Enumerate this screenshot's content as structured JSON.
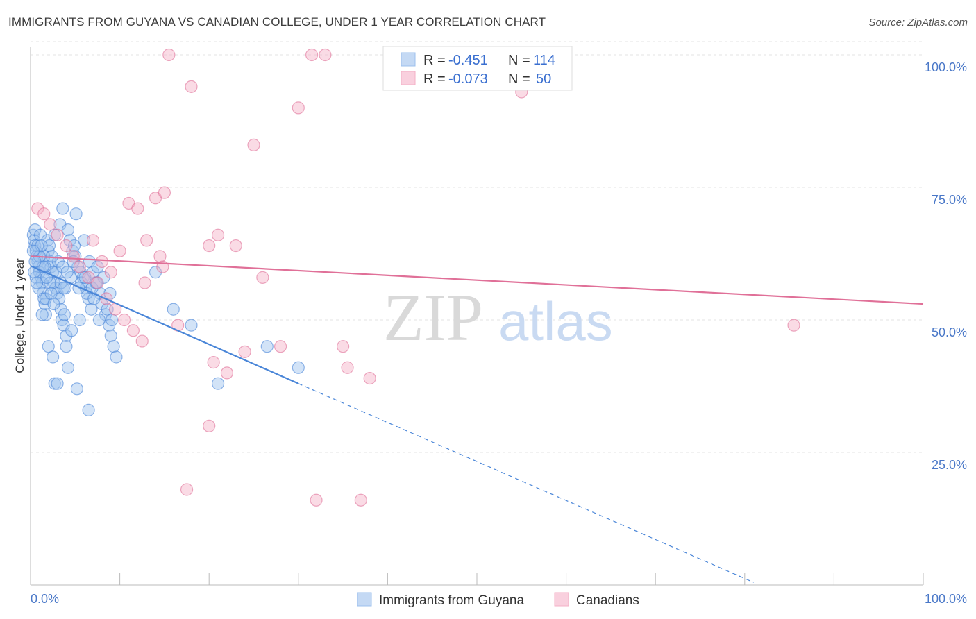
{
  "header": {
    "title": "IMMIGRANTS FROM GUYANA VS CANADIAN COLLEGE, UNDER 1 YEAR CORRELATION CHART",
    "source": "Source: ZipAtlas.com"
  },
  "watermark": {
    "zip": "ZIP",
    "atlas": "atlas"
  },
  "legend": {
    "rows": [
      {
        "r_label": "R =",
        "r_value": "-0.451",
        "n_label": "N =",
        "n_value": "114",
        "color": "#9cc0ee"
      },
      {
        "r_label": "R =",
        "r_value": "-0.073",
        "n_label": "N =",
        "n_value": "50",
        "color": "#f4afc6"
      }
    ]
  },
  "bottom_legend": [
    {
      "label": "Immigrants from Guyana",
      "color": "#9cc0ee"
    },
    {
      "label": "Canadians",
      "color": "#f4afc6"
    }
  ],
  "chart_data": {
    "type": "scatter",
    "ylabel": "College, Under 1 year",
    "xlim": [
      0,
      100
    ],
    "ylim": [
      0,
      100
    ],
    "x_tick_labels": {
      "left": "0.0%",
      "right": "100.0%"
    },
    "y_ticks": [
      {
        "value": 100,
        "label": "100.0%"
      },
      {
        "value": 75,
        "label": "75.0%"
      },
      {
        "value": 50,
        "label": "50.0%"
      },
      {
        "value": 25,
        "label": "25.0%"
      }
    ],
    "grid": true,
    "series": [
      {
        "name": "Immigrants from Guyana",
        "color": "#4a86d8",
        "fill": "#9cc0ee",
        "trend": {
          "x0": 0,
          "y0": 60.2,
          "x1": 30,
          "y1": 38.0,
          "dash_to_x": 81,
          "dash_to_y": 0.5
        },
        "points": [
          [
            0.3,
            66
          ],
          [
            0.4,
            65
          ],
          [
            0.5,
            64
          ],
          [
            0.6,
            63
          ],
          [
            0.7,
            62
          ],
          [
            0.8,
            61
          ],
          [
            0.9,
            60
          ],
          [
            1.0,
            59
          ],
          [
            0.5,
            67
          ],
          [
            1.2,
            58
          ],
          [
            1.3,
            57
          ],
          [
            1.4,
            55
          ],
          [
            1.5,
            54
          ],
          [
            1.6,
            53
          ],
          [
            1.7,
            51
          ],
          [
            0.8,
            64
          ],
          [
            1.1,
            66
          ],
          [
            1.9,
            65
          ],
          [
            2.0,
            63
          ],
          [
            2.2,
            61
          ],
          [
            2.3,
            60
          ],
          [
            2.5,
            59
          ],
          [
            2.6,
            57
          ],
          [
            2.8,
            56
          ],
          [
            3.0,
            55
          ],
          [
            3.2,
            54
          ],
          [
            3.4,
            52
          ],
          [
            3.5,
            50
          ],
          [
            3.7,
            49
          ],
          [
            4.0,
            47
          ],
          [
            1.5,
            62
          ],
          [
            2.1,
            64
          ],
          [
            2.7,
            66
          ],
          [
            3.3,
            68
          ],
          [
            3.6,
            71
          ],
          [
            4.2,
            67
          ],
          [
            4.4,
            65
          ],
          [
            4.7,
            63
          ],
          [
            5.0,
            62
          ],
          [
            5.3,
            60
          ],
          [
            5.6,
            59
          ],
          [
            5.9,
            58
          ],
          [
            6.2,
            56
          ],
          [
            6.5,
            54
          ],
          [
            5.1,
            70
          ],
          [
            6.0,
            65
          ],
          [
            6.6,
            61
          ],
          [
            7.0,
            59
          ],
          [
            7.3,
            57
          ],
          [
            7.8,
            55
          ],
          [
            8.0,
            53
          ],
          [
            8.4,
            51
          ],
          [
            8.8,
            49
          ],
          [
            9.0,
            47
          ],
          [
            9.3,
            45
          ],
          [
            9.6,
            43
          ],
          [
            8.2,
            58
          ],
          [
            8.9,
            55
          ],
          [
            2.0,
            45
          ],
          [
            2.5,
            43
          ],
          [
            2.7,
            38
          ],
          [
            3.0,
            38
          ],
          [
            5.2,
            37
          ],
          [
            6.5,
            33
          ],
          [
            4.0,
            45
          ],
          [
            4.2,
            41
          ],
          [
            3.8,
            51
          ],
          [
            4.6,
            48
          ],
          [
            1.3,
            51
          ],
          [
            1.7,
            54
          ],
          [
            2.2,
            57
          ],
          [
            2.9,
            59
          ],
          [
            3.1,
            61
          ],
          [
            3.9,
            56
          ],
          [
            4.5,
            58
          ],
          [
            5.5,
            50
          ],
          [
            6.8,
            52
          ],
          [
            7.5,
            60
          ],
          [
            1.0,
            62
          ],
          [
            1.2,
            64
          ],
          [
            0.6,
            58
          ],
          [
            0.9,
            56
          ],
          [
            1.6,
            60
          ],
          [
            2.4,
            62
          ],
          [
            3.6,
            60
          ],
          [
            4.9,
            64
          ],
          [
            5.7,
            57
          ],
          [
            6.3,
            55
          ],
          [
            7.1,
            54
          ],
          [
            7.7,
            50
          ],
          [
            14.0,
            59
          ],
          [
            16.0,
            52
          ],
          [
            18.0,
            49
          ],
          [
            21.0,
            38
          ],
          [
            26.5,
            45
          ],
          [
            30.0,
            41
          ],
          [
            0.4,
            59
          ],
          [
            0.7,
            57
          ],
          [
            1.4,
            60
          ],
          [
            1.8,
            58
          ],
          [
            2.3,
            55
          ],
          [
            2.6,
            53
          ],
          [
            3.4,
            57
          ],
          [
            3.7,
            56
          ],
          [
            4.1,
            59
          ],
          [
            4.8,
            61
          ],
          [
            5.4,
            56
          ],
          [
            6.1,
            58
          ],
          [
            6.9,
            56
          ],
          [
            7.4,
            57
          ],
          [
            8.6,
            52
          ],
          [
            9.1,
            50
          ],
          [
            0.3,
            63
          ],
          [
            0.5,
            61
          ]
        ]
      },
      {
        "name": "Canadians",
        "color": "#e07098",
        "fill": "#f4afc6",
        "trend": {
          "x0": 0,
          "y0": 62.0,
          "x1": 100,
          "y1": 53.0
        },
        "points": [
          [
            0.8,
            71
          ],
          [
            1.5,
            70
          ],
          [
            2.2,
            68
          ],
          [
            3.0,
            66
          ],
          [
            4.0,
            64
          ],
          [
            4.8,
            62
          ],
          [
            5.5,
            60
          ],
          [
            6.5,
            58
          ],
          [
            7.5,
            57
          ],
          [
            8.5,
            54
          ],
          [
            9.5,
            52
          ],
          [
            10.5,
            50
          ],
          [
            11.5,
            48
          ],
          [
            12.5,
            46
          ],
          [
            11.0,
            72
          ],
          [
            12.0,
            71
          ],
          [
            14.0,
            73
          ],
          [
            15.0,
            74
          ],
          [
            13.0,
            65
          ],
          [
            14.5,
            62
          ],
          [
            10.0,
            63
          ],
          [
            12.8,
            57
          ],
          [
            14.8,
            60
          ],
          [
            15.5,
            100
          ],
          [
            18.0,
            94
          ],
          [
            20.0,
            64
          ],
          [
            20.5,
            42
          ],
          [
            20.0,
            30
          ],
          [
            16.5,
            49
          ],
          [
            17.5,
            18
          ],
          [
            21.0,
            66
          ],
          [
            22.0,
            40
          ],
          [
            23.0,
            64
          ],
          [
            25.0,
            83
          ],
          [
            24.0,
            44
          ],
          [
            26.0,
            58
          ],
          [
            30.0,
            90
          ],
          [
            31.5,
            100
          ],
          [
            33.0,
            100
          ],
          [
            28.0,
            45
          ],
          [
            35.0,
            45
          ],
          [
            35.5,
            41
          ],
          [
            38.0,
            39
          ],
          [
            32.0,
            16
          ],
          [
            37.0,
            16
          ],
          [
            55.0,
            93
          ],
          [
            85.5,
            49
          ],
          [
            7.0,
            65
          ],
          [
            8.0,
            61
          ],
          [
            9.0,
            59
          ]
        ]
      }
    ]
  }
}
